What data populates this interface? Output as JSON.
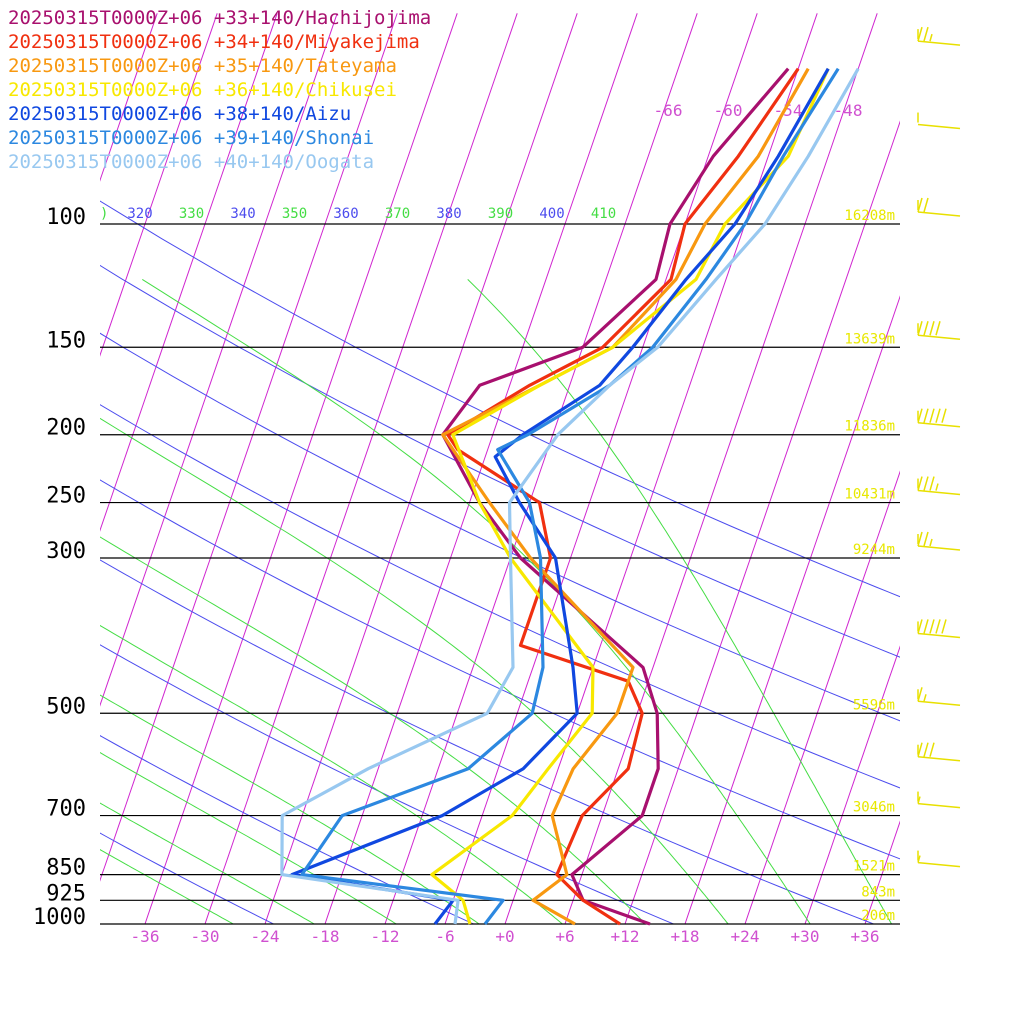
{
  "chart_data": {
    "type": "line",
    "title": "",
    "xlabel": "",
    "ylabel": "",
    "y_scale": "log",
    "xlim": [
      -40,
      39
    ],
    "ylim": [
      1000,
      100
    ],
    "grid": true,
    "legend_position": "top-left",
    "pressure_levels": [
      {
        "p": 100,
        "label": "100",
        "height": "16208m"
      },
      {
        "p": 150,
        "label": "150",
        "height": "13639m"
      },
      {
        "p": 200,
        "label": "200",
        "height": "11836m"
      },
      {
        "p": 250,
        "label": "250",
        "height": "10431m"
      },
      {
        "p": 300,
        "label": "300",
        "height": "9244m"
      },
      {
        "p": 500,
        "label": "500",
        "height": "5596m"
      },
      {
        "p": 700,
        "label": "700",
        "height": "3046m"
      },
      {
        "p": 850,
        "label": "850",
        "height": "1521m"
      },
      {
        "p": 925,
        "label": "925",
        "height": "843m"
      },
      {
        "p": 1000,
        "label": "1000",
        "height": "206m"
      }
    ],
    "temperature_ticks": [
      {
        "value": -36,
        "label": "-36"
      },
      {
        "value": -30,
        "label": "-30"
      },
      {
        "value": -24,
        "label": "-24"
      },
      {
        "value": -18,
        "label": "-18"
      },
      {
        "value": -12,
        "label": "-12"
      },
      {
        "value": -6,
        "label": "-6"
      },
      {
        "value": 0,
        "label": "+0"
      },
      {
        "value": 6,
        "label": "+6"
      },
      {
        "value": 12,
        "label": "+12"
      },
      {
        "value": 18,
        "label": "+18"
      },
      {
        "value": 24,
        "label": "+24"
      },
      {
        "value": 30,
        "label": "+30"
      },
      {
        "value": 36,
        "label": "+36"
      }
    ],
    "upper_temperature_labels": [
      {
        "value": -66,
        "label": "-66"
      },
      {
        "value": -60,
        "label": "-60"
      },
      {
        "value": -54,
        "label": "-54"
      },
      {
        "value": -48,
        "label": "-48"
      }
    ],
    "theta_labels": [
      "320",
      "330",
      "340",
      "350",
      "360",
      "370",
      "380",
      "390",
      "400",
      "410"
    ],
    "theta_label_partial": ")",
    "colors": {
      "isotherm": "#d026d0",
      "dry_adiabat": "#4c4cee",
      "moist_adiabat": "#44dd44",
      "isobar": "#000000",
      "height_label": "#e8e800",
      "wind_barb": "#e8e000",
      "tick_label": "#d050d0"
    },
    "series": [
      {
        "name": "20250315T0000Z+06 +33+140/Hachijojima",
        "color": "#a8106e",
        "points": [
          [
            1000,
            14.5
          ],
          [
            925,
            7
          ],
          [
            850,
            5
          ],
          [
            700,
            10
          ],
          [
            600,
            10
          ],
          [
            500,
            8
          ],
          [
            430,
            5
          ],
          [
            300,
            -11
          ],
          [
            250,
            -17
          ],
          [
            200,
            -23
          ],
          [
            170,
            -21
          ],
          [
            150,
            -12
          ],
          [
            120,
            -7
          ],
          [
            100,
            -7.5
          ],
          [
            80,
            -5.5
          ],
          [
            60,
            -1
          ]
        ]
      },
      {
        "name": "20250315T0000Z+06 +34+140/Miyakejima",
        "color": "#f03010",
        "points": [
          [
            1000,
            11.5
          ],
          [
            925,
            7
          ],
          [
            850,
            3.5
          ],
          [
            700,
            4
          ],
          [
            600,
            7
          ],
          [
            500,
            6.5
          ],
          [
            450,
            4
          ],
          [
            400,
            -8
          ],
          [
            300,
            -8
          ],
          [
            250,
            -11
          ],
          [
            210,
            -21
          ],
          [
            200,
            -22.5
          ],
          [
            170,
            -16
          ],
          [
            150,
            -10
          ],
          [
            120,
            -5.5
          ],
          [
            100,
            -6
          ],
          [
            80,
            -3
          ],
          [
            60,
            0
          ]
        ]
      },
      {
        "name": "20250315T0000Z+06 +35+140/Tateyama",
        "color": "#f89810",
        "points": [
          [
            1000,
            7
          ],
          [
            925,
            2
          ],
          [
            850,
            4.5
          ],
          [
            700,
            1
          ],
          [
            600,
            1.5
          ],
          [
            500,
            4
          ],
          [
            430,
            4
          ],
          [
            300,
            -10
          ],
          [
            250,
            -16
          ],
          [
            200,
            -23
          ],
          [
            170,
            -15
          ],
          [
            150,
            -9
          ],
          [
            120,
            -5
          ],
          [
            100,
            -4
          ],
          [
            80,
            -1
          ],
          [
            60,
            1
          ]
        ]
      },
      {
        "name": "20250315T0000Z+06 +36+140/Chikusei",
        "color": "#f8e800",
        "points": [
          [
            1000,
            -3.5
          ],
          [
            925,
            -5
          ],
          [
            850,
            -9
          ],
          [
            700,
            -3
          ],
          [
            600,
            -1
          ],
          [
            500,
            1.5
          ],
          [
            430,
            0
          ],
          [
            300,
            -12
          ],
          [
            250,
            -17
          ],
          [
            200,
            -22
          ],
          [
            170,
            -15
          ],
          [
            150,
            -9
          ],
          [
            120,
            -3
          ],
          [
            100,
            -2
          ],
          [
            80,
            2
          ],
          [
            60,
            3
          ]
        ]
      },
      {
        "name": "20250315T0000Z+06 +38+140/Aizu",
        "color": "#1048e0",
        "points": [
          [
            1000,
            -7
          ],
          [
            925,
            -6
          ],
          [
            850,
            -23
          ],
          [
            700,
            -10
          ],
          [
            600,
            -3.5
          ],
          [
            500,
            0
          ],
          [
            430,
            -2
          ],
          [
            300,
            -7.5
          ],
          [
            250,
            -13
          ],
          [
            215,
            -17
          ],
          [
            200,
            -15
          ],
          [
            170,
            -9
          ],
          [
            150,
            -7
          ],
          [
            120,
            -4
          ],
          [
            100,
            -1
          ],
          [
            80,
            1
          ],
          [
            60,
            3
          ]
        ]
      },
      {
        "name": "20250315T0000Z+06 +39+140/Shonai",
        "color": "#2c88e0",
        "points": [
          [
            1000,
            -2
          ],
          [
            925,
            -1
          ],
          [
            850,
            -22
          ],
          [
            700,
            -20
          ],
          [
            600,
            -9
          ],
          [
            500,
            -4.5
          ],
          [
            430,
            -5
          ],
          [
            300,
            -9
          ],
          [
            250,
            -12
          ],
          [
            210,
            -17
          ],
          [
            200,
            -14.5
          ],
          [
            170,
            -8
          ],
          [
            150,
            -5
          ],
          [
            120,
            -2
          ],
          [
            100,
            0
          ],
          [
            80,
            1.5
          ],
          [
            60,
            4
          ]
        ]
      },
      {
        "name": "20250315T0000Z+06 +40+140/Oogata",
        "color": "#98c8f0",
        "points": [
          [
            1000,
            -5
          ],
          [
            925,
            -5.5
          ],
          [
            850,
            -24
          ],
          [
            700,
            -26
          ],
          [
            600,
            -19
          ],
          [
            500,
            -9
          ],
          [
            430,
            -8
          ],
          [
            300,
            -12
          ],
          [
            250,
            -14
          ],
          [
            200,
            -11.5
          ],
          [
            170,
            -8
          ],
          [
            150,
            -4.5
          ],
          [
            120,
            -1
          ],
          [
            100,
            2
          ],
          [
            80,
            4
          ],
          [
            60,
            6
          ]
        ]
      }
    ],
    "wind_barbs": [
      {
        "p": 57,
        "speed": 25
      },
      {
        "p": 75,
        "speed": 0
      },
      {
        "p": 100,
        "speed": 20
      },
      {
        "p": 150,
        "speed": 40
      },
      {
        "p": 200,
        "speed": 50
      },
      {
        "p": 250,
        "speed": 35
      },
      {
        "p": 300,
        "speed": 25
      },
      {
        "p": 400,
        "speed": 50
      },
      {
        "p": 500,
        "speed": 15
      },
      {
        "p": 600,
        "speed": 30
      },
      {
        "p": 700,
        "speed": 5
      },
      {
        "p": 850,
        "speed": 5
      }
    ]
  }
}
